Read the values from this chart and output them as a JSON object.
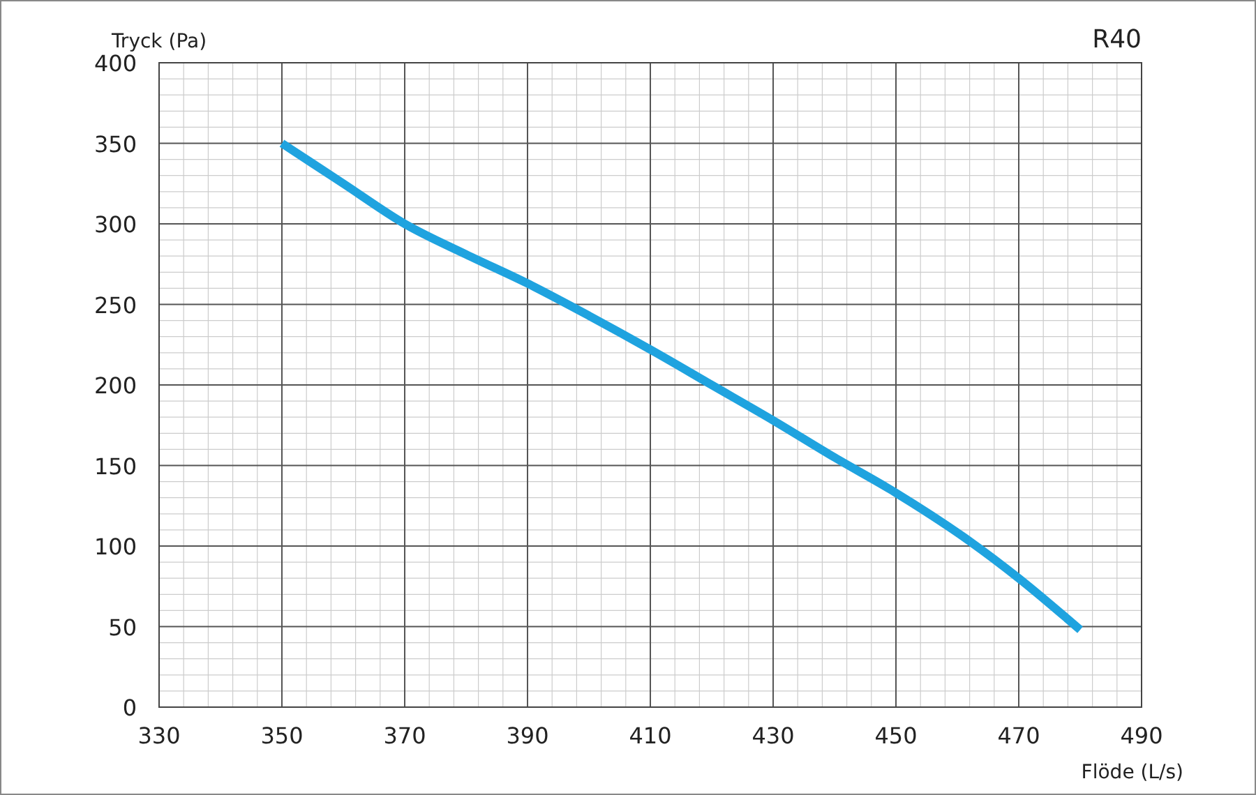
{
  "chart_data": {
    "type": "line",
    "title": "R40",
    "xlabel": "Flöde (L/s)",
    "ylabel": "Tryck (Pa)",
    "x": [
      350,
      360,
      370,
      380,
      390,
      400,
      410,
      420,
      430,
      440,
      450,
      462,
      470,
      480
    ],
    "series": [
      {
        "color": "#1fa3df",
        "values": [
          350,
          325,
          300,
          281,
          263,
          243,
          222,
          200,
          178,
          155,
          133,
          103,
          80,
          48
        ]
      }
    ],
    "xlim": [
      330,
      490
    ],
    "xticks": [
      330,
      350,
      370,
      390,
      410,
      430,
      450,
      470,
      490
    ],
    "ylim": [
      0,
      400
    ],
    "yticks": [
      0,
      50,
      100,
      150,
      200,
      250,
      300,
      350,
      400
    ],
    "grid": true,
    "marker": "none",
    "line_style": "solid"
  }
}
